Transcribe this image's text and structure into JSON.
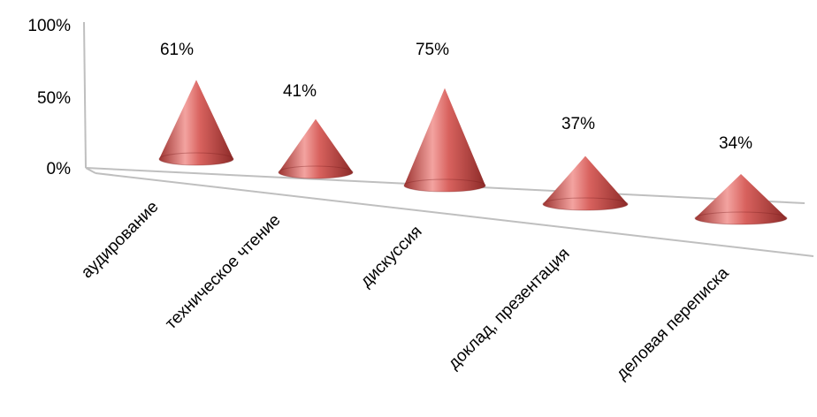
{
  "chart_data": {
    "type": "bar",
    "style": "3d-cone",
    "categories": [
      "аудирование",
      "техническое чтение",
      "дискуссия",
      "доклад, презентация",
      "деловая переписка"
    ],
    "values": [
      61,
      41,
      75,
      37,
      34
    ],
    "data_labels": [
      "61%",
      "41%",
      "75%",
      "37%",
      "34%"
    ],
    "y_ticks": [
      "0%",
      "50%",
      "100%"
    ],
    "ylim": [
      0,
      100
    ],
    "grid": false,
    "legend": "none",
    "colors": {
      "cone": "#c0504d",
      "cone_light": "#f2a4a2",
      "cone_dark": "#8c2a28",
      "axis": "#bfbfbf"
    }
  }
}
